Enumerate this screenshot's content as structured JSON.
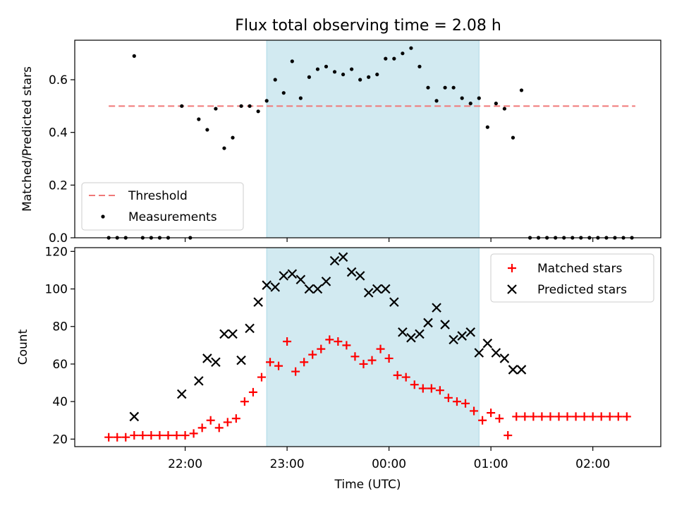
{
  "title": "Flux total observing time = 2.08 h",
  "colors": {
    "threshold": "#f07878",
    "measurements": "#000000",
    "matched": "#ff0000",
    "predicted": "#000000",
    "highlight": "#add8e6"
  },
  "chart_data": [
    {
      "type": "scatter",
      "ylabel": "Matched/Predicted stars",
      "ylim": [
        0,
        0.75
      ],
      "yticks": [
        0.0,
        0.2,
        0.4,
        0.6
      ],
      "ytick_labels": [
        "0.0",
        "0.2",
        "0.4",
        "0.6"
      ],
      "legend_position": "lower-left",
      "highlight_span": {
        "start": "22:48",
        "end": "00:53"
      },
      "threshold": {
        "name": "Threshold",
        "value": 0.5,
        "from": "21:15",
        "to": "02:25"
      },
      "series": [
        {
          "name": "Measurements",
          "marker": "dot",
          "points": [
            [
              "21:15",
              0.0
            ],
            [
              "21:20",
              0.0
            ],
            [
              "21:25",
              0.0
            ],
            [
              "21:30",
              0.69
            ],
            [
              "21:35",
              0.0
            ],
            [
              "21:40",
              0.0
            ],
            [
              "21:45",
              0.0
            ],
            [
              "21:50",
              0.0
            ],
            [
              "21:58",
              0.5
            ],
            [
              "22:03",
              0.0
            ],
            [
              "22:08",
              0.45
            ],
            [
              "22:13",
              0.41
            ],
            [
              "22:18",
              0.49
            ],
            [
              "22:23",
              0.34
            ],
            [
              "22:28",
              0.38
            ],
            [
              "22:33",
              0.5
            ],
            [
              "22:38",
              0.5
            ],
            [
              "22:43",
              0.48
            ],
            [
              "22:48",
              0.52
            ],
            [
              "22:53",
              0.6
            ],
            [
              "22:58",
              0.55
            ],
            [
              "23:03",
              0.67
            ],
            [
              "23:08",
              0.53
            ],
            [
              "23:13",
              0.61
            ],
            [
              "23:18",
              0.64
            ],
            [
              "23:23",
              0.65
            ],
            [
              "23:28",
              0.63
            ],
            [
              "23:33",
              0.62
            ],
            [
              "23:38",
              0.64
            ],
            [
              "23:43",
              0.6
            ],
            [
              "23:48",
              0.61
            ],
            [
              "23:53",
              0.62
            ],
            [
              "23:58",
              0.68
            ],
            [
              "00:03",
              0.68
            ],
            [
              "00:08",
              0.7
            ],
            [
              "00:13",
              0.72
            ],
            [
              "00:18",
              0.65
            ],
            [
              "00:23",
              0.57
            ],
            [
              "00:28",
              0.52
            ],
            [
              "00:33",
              0.57
            ],
            [
              "00:38",
              0.57
            ],
            [
              "00:43",
              0.53
            ],
            [
              "00:48",
              0.51
            ],
            [
              "00:53",
              0.53
            ],
            [
              "00:58",
              0.42
            ],
            [
              "01:03",
              0.51
            ],
            [
              "01:08",
              0.49
            ],
            [
              "01:13",
              0.38
            ],
            [
              "01:18",
              0.56
            ],
            [
              "01:23",
              0.0
            ],
            [
              "01:28",
              0.0
            ],
            [
              "01:33",
              0.0
            ],
            [
              "01:38",
              0.0
            ],
            [
              "01:43",
              0.0
            ],
            [
              "01:48",
              0.0
            ],
            [
              "01:53",
              0.0
            ],
            [
              "01:58",
              0.0
            ],
            [
              "02:03",
              0.0
            ],
            [
              "02:08",
              0.0
            ],
            [
              "02:13",
              0.0
            ],
            [
              "02:18",
              0.0
            ],
            [
              "02:23",
              0.0
            ]
          ]
        }
      ]
    },
    {
      "type": "scatter",
      "xlabel": "Time (UTC)",
      "ylabel": "Count",
      "ylim": [
        16,
        122
      ],
      "yticks": [
        20,
        40,
        60,
        80,
        100,
        120
      ],
      "xticks": [
        "22:00",
        "23:00",
        "00:00",
        "01:00",
        "02:00"
      ],
      "legend_position": "upper-right",
      "highlight_span": {
        "start": "22:48",
        "end": "00:53"
      },
      "series": [
        {
          "name": "Matched stars",
          "marker": "plus",
          "points": [
            [
              "21:15",
              21
            ],
            [
              "21:20",
              21
            ],
            [
              "21:25",
              21
            ],
            [
              "21:30",
              22
            ],
            [
              "21:35",
              22
            ],
            [
              "21:40",
              22
            ],
            [
              "21:45",
              22
            ],
            [
              "21:50",
              22
            ],
            [
              "21:55",
              22
            ],
            [
              "22:00",
              22
            ],
            [
              "22:05",
              23
            ],
            [
              "22:10",
              26
            ],
            [
              "22:15",
              30
            ],
            [
              "22:20",
              26
            ],
            [
              "22:25",
              29
            ],
            [
              "22:30",
              31
            ],
            [
              "22:35",
              40
            ],
            [
              "22:40",
              45
            ],
            [
              "22:45",
              53
            ],
            [
              "22:50",
              61
            ],
            [
              "22:55",
              59
            ],
            [
              "23:00",
              72
            ],
            [
              "23:05",
              56
            ],
            [
              "23:10",
              61
            ],
            [
              "23:15",
              65
            ],
            [
              "23:20",
              68
            ],
            [
              "23:25",
              73
            ],
            [
              "23:30",
              72
            ],
            [
              "23:35",
              70
            ],
            [
              "23:40",
              64
            ],
            [
              "23:45",
              60
            ],
            [
              "23:50",
              62
            ],
            [
              "23:55",
              68
            ],
            [
              "00:00",
              63
            ],
            [
              "00:05",
              54
            ],
            [
              "00:10",
              53
            ],
            [
              "00:15",
              49
            ],
            [
              "00:20",
              47
            ],
            [
              "00:25",
              47
            ],
            [
              "00:30",
              46
            ],
            [
              "00:35",
              42
            ],
            [
              "00:40",
              40
            ],
            [
              "00:45",
              39
            ],
            [
              "00:50",
              35
            ],
            [
              "00:55",
              30
            ],
            [
              "01:00",
              34
            ],
            [
              "01:05",
              31
            ],
            [
              "01:10",
              22
            ],
            [
              "01:15",
              32
            ],
            [
              "01:20",
              32
            ],
            [
              "01:25",
              32
            ],
            [
              "01:30",
              32
            ],
            [
              "01:35",
              32
            ],
            [
              "01:40",
              32
            ],
            [
              "01:45",
              32
            ],
            [
              "01:50",
              32
            ],
            [
              "01:55",
              32
            ],
            [
              "02:00",
              32
            ],
            [
              "02:05",
              32
            ],
            [
              "02:10",
              32
            ],
            [
              "02:15",
              32
            ],
            [
              "02:20",
              32
            ]
          ]
        },
        {
          "name": "Predicted stars",
          "marker": "x",
          "points": [
            [
              "21:30",
              32
            ],
            [
              "21:58",
              44
            ],
            [
              "22:08",
              51
            ],
            [
              "22:13",
              63
            ],
            [
              "22:18",
              61
            ],
            [
              "22:23",
              76
            ],
            [
              "22:28",
              76
            ],
            [
              "22:33",
              62
            ],
            [
              "22:38",
              79
            ],
            [
              "22:43",
              93
            ],
            [
              "22:48",
              102
            ],
            [
              "22:53",
              101
            ],
            [
              "22:58",
              107
            ],
            [
              "23:03",
              108
            ],
            [
              "23:08",
              105
            ],
            [
              "23:13",
              100
            ],
            [
              "23:18",
              100
            ],
            [
              "23:23",
              104
            ],
            [
              "23:28",
              115
            ],
            [
              "23:33",
              117
            ],
            [
              "23:38",
              109
            ],
            [
              "23:43",
              107
            ],
            [
              "23:48",
              98
            ],
            [
              "23:53",
              100
            ],
            [
              "23:58",
              100
            ],
            [
              "00:03",
              93
            ],
            [
              "00:08",
              77
            ],
            [
              "00:13",
              74
            ],
            [
              "00:18",
              76
            ],
            [
              "00:23",
              82
            ],
            [
              "00:28",
              90
            ],
            [
              "00:33",
              81
            ],
            [
              "00:38",
              73
            ],
            [
              "00:43",
              75
            ],
            [
              "00:48",
              77
            ],
            [
              "00:53",
              66
            ],
            [
              "00:58",
              71
            ],
            [
              "01:03",
              66
            ],
            [
              "01:08",
              63
            ],
            [
              "01:13",
              57
            ],
            [
              "01:18",
              57
            ]
          ]
        }
      ]
    }
  ]
}
